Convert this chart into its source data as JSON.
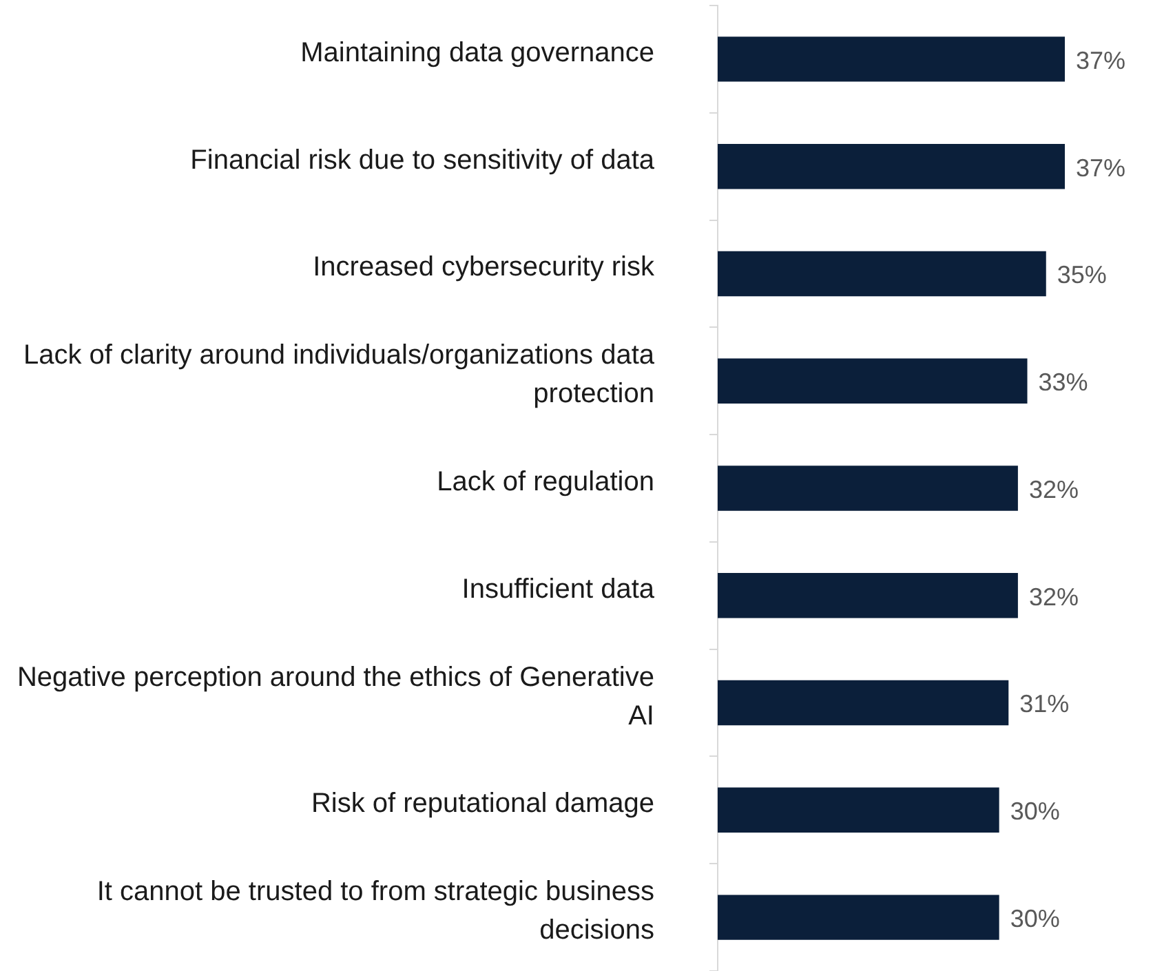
{
  "chart_data": {
    "type": "bar",
    "orientation": "horizontal",
    "categories": [
      "Maintaining data governance",
      "Financial risk due to sensitivity of data",
      "Increased cybersecurity risk",
      "Lack of clarity around individuals/organizations data protection",
      "Lack of regulation",
      "Insufficient data",
      "Negative perception around the ethics of Generative AI",
      "Risk of reputational damage",
      "It cannot be trusted to from strategic business decisions"
    ],
    "values": [
      37,
      37,
      35,
      33,
      32,
      32,
      31,
      30,
      30
    ],
    "value_labels": [
      "37%",
      "37%",
      "35%",
      "33%",
      "32%",
      "32%",
      "31%",
      "30%",
      "30%"
    ],
    "color": "#0b1f3a",
    "grid": false,
    "legend": false
  }
}
